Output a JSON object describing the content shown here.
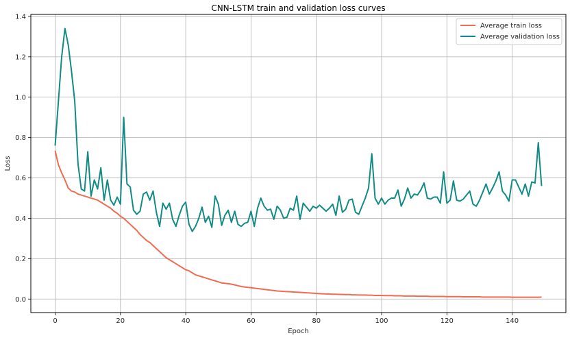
{
  "chart_data": {
    "type": "line",
    "title": "CNN-LSTM train and validation loss curves",
    "xlabel": "Epoch",
    "ylabel": "Loss",
    "xlim": [
      -7.45,
      156.45
    ],
    "ylim": [
      -0.067,
      1.41
    ],
    "xticks": [
      0,
      20,
      40,
      60,
      80,
      100,
      120,
      140
    ],
    "yticks": [
      0.0,
      0.2,
      0.4,
      0.6,
      0.8,
      1.0,
      1.2,
      1.4
    ],
    "grid": true,
    "legend_position": "upper-right",
    "series": [
      {
        "name": "Average train loss",
        "color": "#f26b4f",
        "values": [
          0.735,
          0.665,
          0.625,
          0.59,
          0.55,
          0.535,
          0.53,
          0.52,
          0.515,
          0.51,
          0.505,
          0.5,
          0.495,
          0.49,
          0.48,
          0.47,
          0.46,
          0.45,
          0.435,
          0.425,
          0.41,
          0.4,
          0.385,
          0.37,
          0.355,
          0.34,
          0.32,
          0.305,
          0.29,
          0.28,
          0.265,
          0.25,
          0.235,
          0.22,
          0.205,
          0.195,
          0.185,
          0.175,
          0.165,
          0.155,
          0.145,
          0.14,
          0.13,
          0.12,
          0.115,
          0.11,
          0.105,
          0.1,
          0.095,
          0.09,
          0.085,
          0.08,
          0.078,
          0.076,
          0.074,
          0.07,
          0.066,
          0.062,
          0.06,
          0.058,
          0.056,
          0.054,
          0.052,
          0.05,
          0.048,
          0.046,
          0.044,
          0.042,
          0.04,
          0.039,
          0.038,
          0.037,
          0.036,
          0.035,
          0.034,
          0.033,
          0.032,
          0.031,
          0.03,
          0.029,
          0.028,
          0.027,
          0.026,
          0.025,
          0.025,
          0.024,
          0.024,
          0.023,
          0.023,
          0.022,
          0.022,
          0.021,
          0.021,
          0.02,
          0.02,
          0.02,
          0.019,
          0.019,
          0.018,
          0.018,
          0.018,
          0.017,
          0.017,
          0.017,
          0.016,
          0.016,
          0.016,
          0.015,
          0.015,
          0.015,
          0.015,
          0.014,
          0.014,
          0.014,
          0.014,
          0.013,
          0.013,
          0.013,
          0.013,
          0.013,
          0.012,
          0.012,
          0.012,
          0.012,
          0.012,
          0.011,
          0.011,
          0.011,
          0.011,
          0.011,
          0.011,
          0.01,
          0.01,
          0.01,
          0.01,
          0.01,
          0.01,
          0.01,
          0.01,
          0.01,
          0.009,
          0.009,
          0.009,
          0.009,
          0.009,
          0.009,
          0.009,
          0.009,
          0.009,
          0.01
        ]
      },
      {
        "name": "Average validation loss",
        "color": "#118b85",
        "values": [
          0.76,
          0.98,
          1.2,
          1.34,
          1.26,
          1.13,
          0.98,
          0.67,
          0.545,
          0.535,
          0.73,
          0.51,
          0.59,
          0.545,
          0.65,
          0.49,
          0.59,
          0.49,
          0.465,
          0.505,
          0.47,
          0.9,
          0.57,
          0.555,
          0.44,
          0.42,
          0.435,
          0.52,
          0.53,
          0.49,
          0.535,
          0.43,
          0.36,
          0.475,
          0.445,
          0.475,
          0.395,
          0.36,
          0.415,
          0.46,
          0.48,
          0.37,
          0.335,
          0.36,
          0.4,
          0.455,
          0.38,
          0.41,
          0.355,
          0.51,
          0.47,
          0.365,
          0.415,
          0.44,
          0.38,
          0.435,
          0.37,
          0.36,
          0.375,
          0.38,
          0.435,
          0.36,
          0.45,
          0.5,
          0.46,
          0.44,
          0.445,
          0.395,
          0.46,
          0.44,
          0.4,
          0.405,
          0.45,
          0.44,
          0.51,
          0.395,
          0.475,
          0.455,
          0.435,
          0.46,
          0.45,
          0.465,
          0.45,
          0.435,
          0.45,
          0.47,
          0.415,
          0.51,
          0.43,
          0.445,
          0.49,
          0.495,
          0.43,
          0.42,
          0.46,
          0.5,
          0.55,
          0.72,
          0.5,
          0.47,
          0.5,
          0.47,
          0.49,
          0.5,
          0.5,
          0.54,
          0.46,
          0.495,
          0.55,
          0.5,
          0.52,
          0.515,
          0.54,
          0.575,
          0.5,
          0.495,
          0.505,
          0.505,
          0.475,
          0.63,
          0.475,
          0.49,
          0.585,
          0.49,
          0.485,
          0.495,
          0.515,
          0.535,
          0.47,
          0.46,
          0.49,
          0.53,
          0.57,
          0.52,
          0.55,
          0.585,
          0.63,
          0.535,
          0.515,
          0.485,
          0.59,
          0.59,
          0.555,
          0.52,
          0.57,
          0.51,
          0.58,
          0.575,
          0.775,
          0.56
        ]
      }
    ]
  }
}
